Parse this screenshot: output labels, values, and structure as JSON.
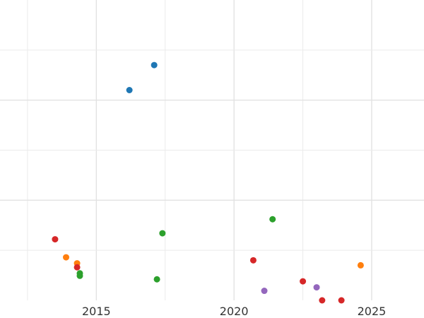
{
  "chart_data": {
    "type": "scatter",
    "title": "",
    "xlabel": "",
    "ylabel": "",
    "xlim": [
      2011.5,
      2026.9
    ],
    "ylim": [
      0,
      30
    ],
    "grid": true,
    "x_ticks": [
      {
        "value": 2015,
        "label": "2015"
      },
      {
        "value": 2020,
        "label": "2020"
      },
      {
        "value": 2025,
        "label": "2025"
      }
    ],
    "y_gridlines": [
      5,
      10,
      15,
      20,
      25
    ],
    "series": [
      {
        "color": "#1f77b4",
        "points": [
          {
            "x": 2016.2,
            "y": 21.0
          },
          {
            "x": 2017.1,
            "y": 23.5
          }
        ]
      },
      {
        "color": "#ff7f0e",
        "points": [
          {
            "x": 2013.9,
            "y": 4.3
          },
          {
            "x": 2014.3,
            "y": 3.7
          },
          {
            "x": 2024.6,
            "y": 3.5
          }
        ]
      },
      {
        "color": "#2ca02c",
        "points": [
          {
            "x": 2014.4,
            "y": 2.7
          },
          {
            "x": 2014.4,
            "y": 2.45
          },
          {
            "x": 2017.2,
            "y": 2.1
          },
          {
            "x": 2017.4,
            "y": 6.7
          },
          {
            "x": 2021.4,
            "y": 8.1
          }
        ]
      },
      {
        "color": "#d62728",
        "points": [
          {
            "x": 2013.5,
            "y": 6.1
          },
          {
            "x": 2014.3,
            "y": 3.3
          },
          {
            "x": 2020.7,
            "y": 4.0
          },
          {
            "x": 2022.5,
            "y": 1.9
          },
          {
            "x": 2023.2,
            "y": 0.0
          },
          {
            "x": 2023.9,
            "y": 0.0
          }
        ]
      },
      {
        "color": "#9467bd",
        "points": [
          {
            "x": 2021.1,
            "y": 0.95
          },
          {
            "x": 2023.0,
            "y": 1.3
          }
        ]
      }
    ]
  }
}
